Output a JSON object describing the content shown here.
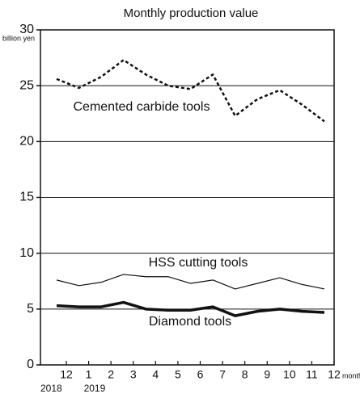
{
  "chart_data": {
    "type": "line",
    "title": "Monthly production value",
    "y_unit": "billion yen",
    "x_unit": "month",
    "categories": [
      "12",
      "1",
      "2",
      "3",
      "4",
      "5",
      "6",
      "7",
      "8",
      "9",
      "10",
      "11",
      "12"
    ],
    "year_labels": [
      {
        "index": 0,
        "label": "2018"
      },
      {
        "index": 1,
        "label": "2019"
      }
    ],
    "ylim": [
      0,
      30
    ],
    "yticks": [
      0,
      5,
      10,
      15,
      20,
      25,
      30
    ],
    "grid": true,
    "series": [
      {
        "name": "Cemented carbide tools",
        "color": "#111111",
        "line_style": "dashed",
        "line_width": 2.5,
        "values": [
          25.6,
          24.8,
          25.8,
          27.3,
          26.0,
          25.0,
          24.7,
          26.0,
          22.3,
          23.8,
          24.6,
          23.3,
          21.8
        ]
      },
      {
        "name": "HSS cutting tools",
        "color": "#111111",
        "line_style": "solid",
        "line_width": 1.2,
        "values": [
          7.6,
          7.1,
          7.4,
          8.1,
          7.9,
          7.9,
          7.3,
          7.6,
          6.8,
          7.3,
          7.8,
          7.2,
          6.8
        ]
      },
      {
        "name": "Diamond tools",
        "color": "#111111",
        "line_style": "solid",
        "line_width": 3.5,
        "values": [
          5.3,
          5.2,
          5.2,
          5.6,
          5.0,
          4.9,
          4.9,
          5.2,
          4.4,
          4.8,
          5.0,
          4.8,
          4.7
        ]
      }
    ]
  }
}
